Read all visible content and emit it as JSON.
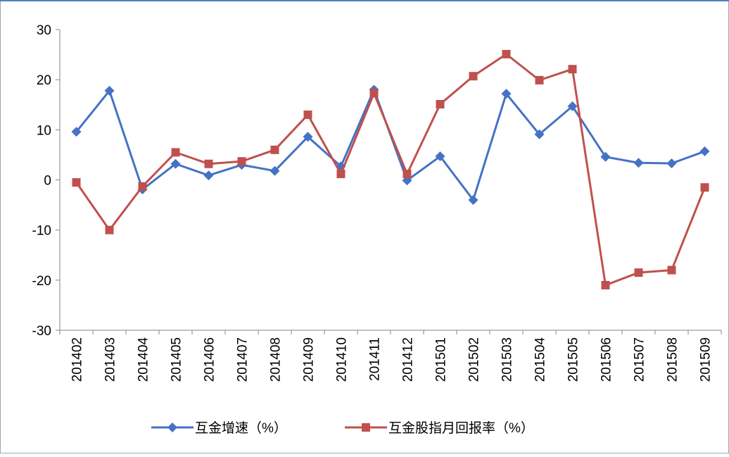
{
  "chart_data": {
    "type": "line",
    "categories": [
      "201402",
      "201403",
      "201404",
      "201405",
      "201406",
      "201407",
      "201408",
      "201409",
      "201410",
      "201411",
      "201412",
      "201501",
      "201502",
      "201503",
      "201504",
      "201505",
      "201506",
      "201507",
      "201508",
      "201509"
    ],
    "series": [
      {
        "name": "互金增速（%）",
        "color": "#4572c4",
        "marker": "diamond",
        "values": [
          9.6,
          17.8,
          -1.9,
          3.2,
          0.9,
          3.0,
          1.8,
          8.6,
          2.7,
          18.0,
          -0.1,
          4.7,
          -4.0,
          17.2,
          9.1,
          14.7,
          4.6,
          3.4,
          3.3,
          5.7
        ]
      },
      {
        "name": "互金股指月回报率（%）",
        "color": "#c0504d",
        "marker": "square",
        "values": [
          -0.5,
          -10.0,
          -1.3,
          5.5,
          3.2,
          3.7,
          6.0,
          13.0,
          1.2,
          17.3,
          1.2,
          15.1,
          20.7,
          25.1,
          19.9,
          22.1,
          -21.0,
          -18.5,
          -18.0,
          -1.5
        ]
      }
    ],
    "ylim": [
      -30,
      30
    ],
    "yticks": [
      -30,
      -20,
      -10,
      0,
      10,
      20,
      30
    ],
    "grid": false,
    "legend": "bottom"
  }
}
